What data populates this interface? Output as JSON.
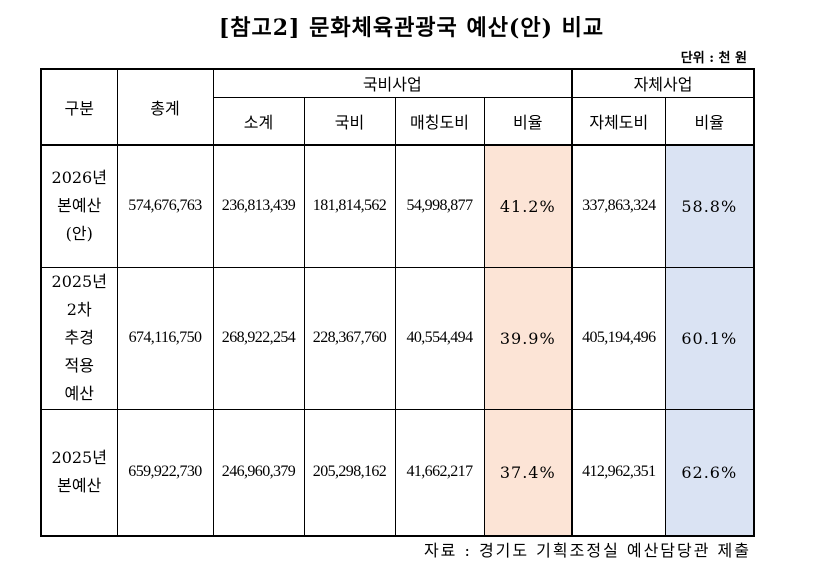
{
  "title": "[참고2] 문화체육관광국 예산(안) 비교",
  "unit": "단위 : 천 원",
  "headers": {
    "gubun": "구분",
    "total": "총계",
    "national_group": "국비사업",
    "own_group": "자체사업",
    "subtotal": "소계",
    "national": "국비",
    "matching": "매칭도비",
    "ratio1": "비율",
    "own_provincial": "자체도비",
    "ratio2": "비율"
  },
  "rows": [
    {
      "label": [
        "2026년",
        "본예산",
        "(안)"
      ],
      "total": "574,676,763",
      "subtotal": "236,813,439",
      "national": "181,814,562",
      "matching": "54,998,877",
      "ratio1": "41.2%",
      "own": "337,863,324",
      "ratio2": "58.8%"
    },
    {
      "label": [
        "2025년",
        "2차",
        "추경",
        "적용",
        "예산"
      ],
      "total": "674,116,750",
      "subtotal": "268,922,254",
      "national": "228,367,760",
      "matching": "40,554,494",
      "ratio1": "39.9%",
      "own": "405,194,496",
      "ratio2": "60.1%"
    },
    {
      "label": [
        "2025년",
        "본예산"
      ],
      "total": "659,922,730",
      "subtotal": "246,960,379",
      "national": "205,298,162",
      "matching": "41,662,217",
      "ratio1": "37.4%",
      "own": "412,962,351",
      "ratio2": "62.6%"
    }
  ],
  "source": "자료 : 경기도 기획조정실 예산담당관 제출",
  "colors": {
    "ratio1_bg": "#fce4d6",
    "ratio2_bg": "#dae3f3"
  }
}
